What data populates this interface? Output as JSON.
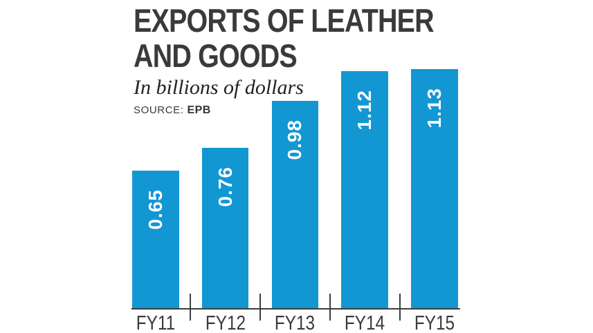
{
  "header": {
    "title_line1": "EXPORTS OF LEATHER",
    "title_line2": "AND GOODS",
    "subtitle": "In billions of dollars",
    "source_label": "SOURCE:",
    "source_value": "EPB"
  },
  "chart_data": {
    "type": "bar",
    "title": "EXPORTS OF LEATHER AND GOODS",
    "subtitle": "In billions of dollars",
    "source": "EPB",
    "categories": [
      "FY11",
      "FY12",
      "FY13",
      "FY14",
      "FY15"
    ],
    "values": [
      0.65,
      0.76,
      0.98,
      1.12,
      1.13
    ],
    "value_labels": [
      "0.65",
      "0.76",
      "0.98",
      "1.12",
      "1.13"
    ],
    "unit": "billions of dollars",
    "xlabel": "",
    "ylabel": "",
    "ylim": [
      0,
      1.2
    ],
    "grid": "off",
    "legend": "none",
    "bar_color": "#1297d3",
    "value_label_color": "#ffffff",
    "axis_color": "#3d3d3f",
    "text_color": "#3a3a3c"
  }
}
